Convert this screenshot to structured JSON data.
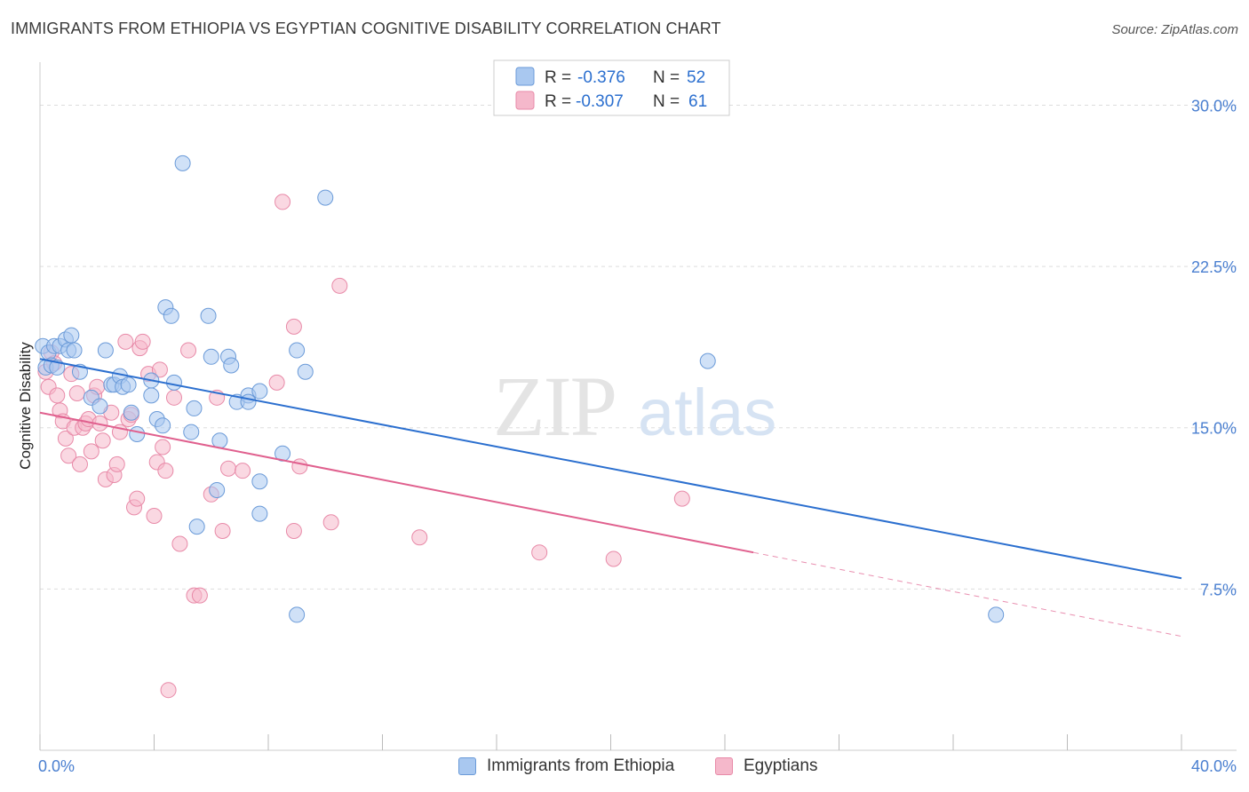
{
  "title": "IMMIGRANTS FROM ETHIOPIA VS EGYPTIAN COGNITIVE DISABILITY CORRELATION CHART",
  "source": "Source: ZipAtlas.com",
  "watermark": {
    "zip": "ZIP",
    "atlas": "atlas"
  },
  "colors": {
    "blue_fill": "#a9c8f0",
    "blue_stroke": "#6a9ad8",
    "blue_line": "#2b6fcf",
    "pink_fill": "#f5b8cb",
    "pink_stroke": "#e88aa8",
    "pink_line": "#e0608e",
    "axis_text": "#4a7fd0",
    "grid": "#dddddd"
  },
  "legend": {
    "rows": [
      {
        "r_label": "R =",
        "r_value": "-0.376",
        "n_label": "N =",
        "n_value": "52"
      },
      {
        "r_label": "R =",
        "r_value": "-0.307",
        "n_label": "N =",
        "n_value": "61"
      }
    ]
  },
  "chart_data": {
    "type": "scatter",
    "title": "IMMIGRANTS FROM ETHIOPIA VS EGYPTIAN COGNITIVE DISABILITY CORRELATION CHART",
    "xlabel": "",
    "ylabel": "Cognitive Disability",
    "xlim": [
      0,
      40
    ],
    "ylim": [
      0,
      32
    ],
    "x_tick_labels": [
      "0.0%",
      "40.0%"
    ],
    "y_ticks": [
      7.5,
      15.0,
      22.5,
      30.0
    ],
    "y_tick_labels": [
      "7.5%",
      "15.0%",
      "22.5%",
      "30.0%"
    ],
    "grid": true,
    "legend_position": "top-center",
    "series": [
      {
        "name": "Immigrants from Ethiopia",
        "color": "#a9c8f0",
        "trend": {
          "x": [
            0,
            40
          ],
          "y": [
            18.2,
            8.0
          ]
        },
        "points": [
          [
            0.1,
            18.8
          ],
          [
            0.2,
            17.8
          ],
          [
            0.3,
            18.5
          ],
          [
            0.4,
            17.9
          ],
          [
            0.5,
            18.8
          ],
          [
            0.6,
            17.8
          ],
          [
            0.7,
            18.8
          ],
          [
            0.9,
            19.1
          ],
          [
            1.0,
            18.6
          ],
          [
            1.1,
            19.3
          ],
          [
            1.2,
            18.6
          ],
          [
            1.4,
            17.6
          ],
          [
            1.8,
            16.4
          ],
          [
            2.1,
            16.0
          ],
          [
            2.3,
            18.6
          ],
          [
            2.5,
            17.0
          ],
          [
            2.6,
            17.0
          ],
          [
            2.8,
            17.4
          ],
          [
            2.9,
            16.9
          ],
          [
            3.1,
            17.0
          ],
          [
            3.2,
            15.7
          ],
          [
            3.4,
            14.7
          ],
          [
            3.9,
            16.5
          ],
          [
            3.9,
            17.2
          ],
          [
            4.1,
            15.4
          ],
          [
            4.3,
            15.1
          ],
          [
            4.4,
            20.6
          ],
          [
            4.6,
            20.2
          ],
          [
            4.7,
            17.1
          ],
          [
            5.0,
            27.3
          ],
          [
            5.3,
            14.8
          ],
          [
            5.4,
            15.9
          ],
          [
            5.5,
            10.4
          ],
          [
            5.9,
            20.2
          ],
          [
            6.0,
            18.3
          ],
          [
            6.2,
            12.1
          ],
          [
            6.3,
            14.4
          ],
          [
            6.6,
            18.3
          ],
          [
            6.7,
            17.9
          ],
          [
            6.9,
            16.2
          ],
          [
            7.3,
            16.5
          ],
          [
            7.3,
            16.2
          ],
          [
            7.7,
            11.0
          ],
          [
            7.7,
            12.5
          ],
          [
            7.7,
            16.7
          ],
          [
            8.5,
            13.8
          ],
          [
            9.0,
            18.6
          ],
          [
            9.0,
            6.3
          ],
          [
            9.3,
            17.6
          ],
          [
            10.0,
            25.7
          ],
          [
            23.4,
            18.1
          ],
          [
            33.5,
            6.3
          ]
        ]
      },
      {
        "name": "Egyptians",
        "color": "#f5b8cb",
        "trend": {
          "x": [
            0,
            25
          ],
          "y": [
            15.7,
            9.2
          ]
        },
        "trend_dashed": {
          "x": [
            25,
            40
          ],
          "y": [
            9.2,
            5.3
          ]
        },
        "points": [
          [
            0.2,
            17.6
          ],
          [
            0.3,
            16.9
          ],
          [
            0.4,
            18.5
          ],
          [
            0.5,
            18.0
          ],
          [
            0.6,
            16.5
          ],
          [
            0.7,
            15.8
          ],
          [
            0.8,
            15.3
          ],
          [
            0.9,
            14.5
          ],
          [
            1.0,
            13.7
          ],
          [
            1.1,
            17.5
          ],
          [
            1.2,
            15.0
          ],
          [
            1.3,
            16.6
          ],
          [
            1.4,
            13.3
          ],
          [
            1.5,
            15.0
          ],
          [
            1.6,
            15.2
          ],
          [
            1.7,
            15.4
          ],
          [
            1.8,
            13.9
          ],
          [
            1.9,
            16.5
          ],
          [
            2.0,
            16.9
          ],
          [
            2.1,
            15.2
          ],
          [
            2.2,
            14.4
          ],
          [
            2.3,
            12.6
          ],
          [
            2.5,
            15.7
          ],
          [
            2.6,
            12.8
          ],
          [
            2.7,
            13.3
          ],
          [
            2.8,
            14.8
          ],
          [
            3.0,
            19.0
          ],
          [
            3.1,
            15.4
          ],
          [
            3.2,
            15.6
          ],
          [
            3.3,
            11.3
          ],
          [
            3.4,
            11.7
          ],
          [
            3.5,
            18.7
          ],
          [
            3.6,
            19.0
          ],
          [
            3.8,
            17.5
          ],
          [
            4.0,
            10.9
          ],
          [
            4.1,
            13.4
          ],
          [
            4.2,
            17.7
          ],
          [
            4.3,
            14.1
          ],
          [
            4.4,
            13.0
          ],
          [
            4.5,
            2.8
          ],
          [
            4.7,
            16.4
          ],
          [
            4.9,
            9.6
          ],
          [
            5.2,
            18.6
          ],
          [
            5.4,
            7.2
          ],
          [
            5.6,
            7.2
          ],
          [
            6.0,
            11.9
          ],
          [
            6.2,
            16.4
          ],
          [
            6.4,
            10.2
          ],
          [
            6.6,
            13.1
          ],
          [
            7.1,
            13.0
          ],
          [
            8.3,
            17.1
          ],
          [
            8.5,
            25.5
          ],
          [
            8.9,
            19.7
          ],
          [
            8.9,
            10.2
          ],
          [
            9.1,
            13.2
          ],
          [
            10.2,
            10.6
          ],
          [
            10.5,
            21.6
          ],
          [
            13.3,
            9.9
          ],
          [
            17.5,
            9.2
          ],
          [
            20.1,
            8.9
          ],
          [
            22.5,
            11.7
          ]
        ]
      }
    ]
  },
  "bottom_legend": {
    "items": [
      "Immigrants from Ethiopia",
      "Egyptians"
    ]
  }
}
